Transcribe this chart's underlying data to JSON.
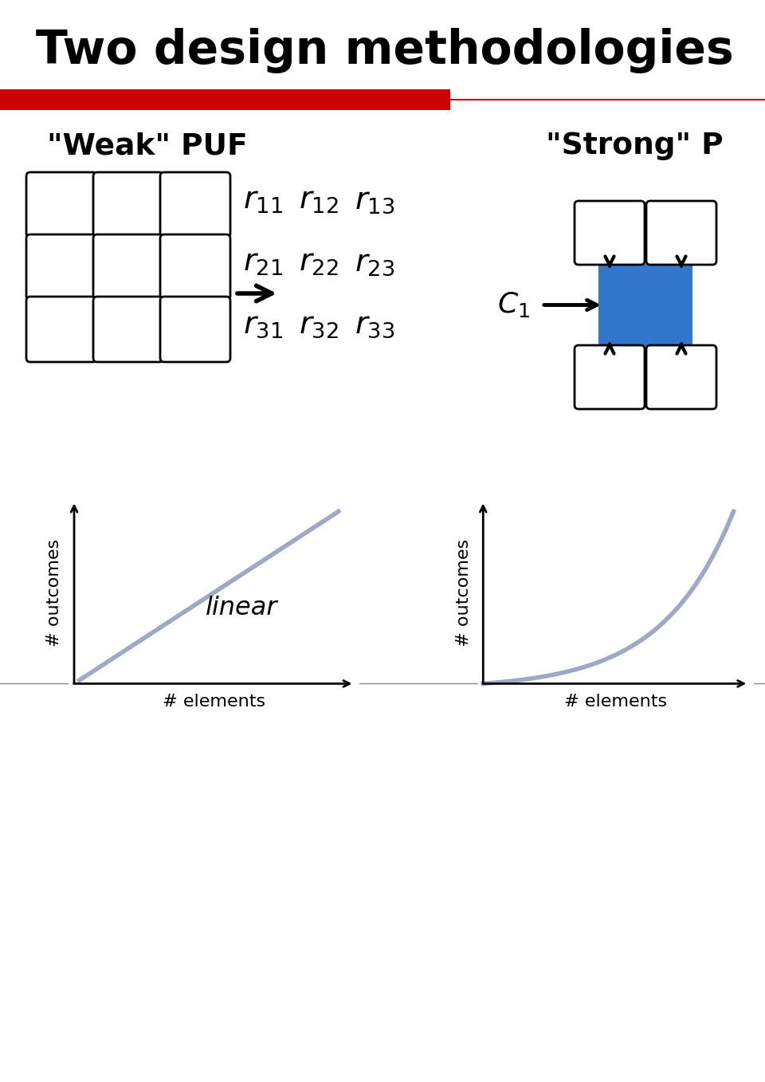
{
  "title": "Two design methodologies",
  "title_fontsize": 42,
  "title_color": "#000000",
  "red_bar_color": "#CC0000",
  "weak_puf_label": "\"Weak\" PUF",
  "strong_puf_label": "\"Strong\" P",
  "matrix_labels": [
    [
      "r_{11}",
      "r_{12}",
      "r_{13}"
    ],
    [
      "r_{21}",
      "r_{22}",
      "r_{23}"
    ],
    [
      "r_{31}",
      "r_{32}",
      "r_{33}"
    ]
  ],
  "linear_label": "linear",
  "xlabel_label": "# elements",
  "ylabel_label": "# outcomes",
  "line_color_left": "#a0a8c8",
  "line_color_right": "#a0a8c8",
  "line_width": 4.0,
  "bg_color": "#ffffff",
  "blue_box_color": "#3377cc",
  "fp_edge_color": "#000000",
  "arrow_color": "#000000"
}
